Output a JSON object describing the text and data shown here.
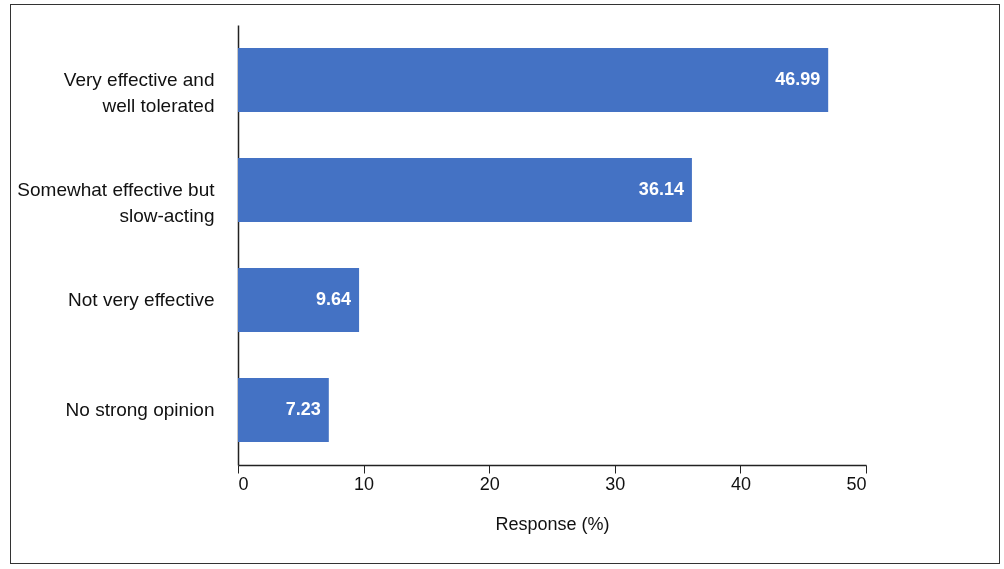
{
  "chart_data": {
    "type": "bar",
    "orientation": "horizontal",
    "xlabel": "Response (%)",
    "categories": [
      "Very effective and well tolerated",
      "Somewhat effective but slow-acting",
      "Not very effective",
      "No strong opinion"
    ],
    "values": [
      46.99,
      36.14,
      9.64,
      7.23
    ],
    "color": "#4472c4",
    "xlim": [
      0,
      50
    ],
    "xticks": [
      0,
      10,
      20,
      30,
      40,
      50
    ],
    "data_labels": true
  }
}
